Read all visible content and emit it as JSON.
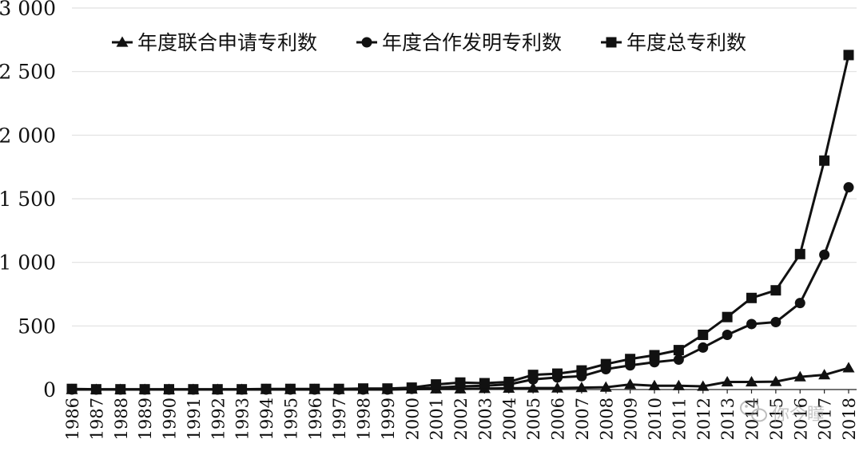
{
  "chart_data": {
    "type": "line",
    "title": "",
    "xlabel": "",
    "ylabel": "",
    "ylim": [
      0,
      3000
    ],
    "yticks": [
      0,
      500,
      1000,
      1500,
      2000,
      2500,
      3000
    ],
    "ytick_labels": [
      "0",
      "500",
      "1 000",
      "1 500",
      "2 000",
      "2 500",
      "3 000"
    ],
    "categories": [
      "1986",
      "1987",
      "1988",
      "1989",
      "1990",
      "1991",
      "1992",
      "1993",
      "1994",
      "1995",
      "1996",
      "1997",
      "1998",
      "1999",
      "2000",
      "2001",
      "2002",
      "2003",
      "2004",
      "2005",
      "2006",
      "2007",
      "2008",
      "2009",
      "2010",
      "2011",
      "2012",
      "2013",
      "2014",
      "2015",
      "2016",
      "2017",
      "2018"
    ],
    "grid": "horizontal",
    "legend_position": "top",
    "series": [
      {
        "name": "年度联合申请专利数",
        "marker": "triangle",
        "values": [
          0,
          0,
          0,
          0,
          0,
          0,
          0,
          0,
          0,
          0,
          0,
          0,
          0,
          0,
          3,
          5,
          5,
          8,
          10,
          12,
          12,
          15,
          18,
          40,
          30,
          30,
          25,
          60,
          60,
          62,
          100,
          115,
          170
        ]
      },
      {
        "name": "年度合作发明专利数",
        "marker": "circle",
        "values": [
          0,
          0,
          0,
          0,
          0,
          0,
          0,
          0,
          0,
          0,
          0,
          0,
          0,
          0,
          5,
          15,
          25,
          30,
          40,
          80,
          95,
          105,
          160,
          190,
          215,
          235,
          330,
          430,
          515,
          530,
          680,
          1060,
          1590
        ]
      },
      {
        "name": "年度总专利数",
        "marker": "square",
        "values": [
          5,
          2,
          2,
          2,
          2,
          2,
          2,
          2,
          5,
          5,
          5,
          5,
          8,
          8,
          15,
          40,
          55,
          50,
          60,
          115,
          125,
          150,
          200,
          240,
          270,
          310,
          430,
          570,
          720,
          780,
          1065,
          1800,
          2630
        ]
      }
    ],
    "colors": {
      "line": "#111111",
      "grid": "#e1e1e1",
      "background": "#ffffff"
    }
  },
  "watermark": {
    "icon": "wechat-icon",
    "text": "你今瞳"
  }
}
